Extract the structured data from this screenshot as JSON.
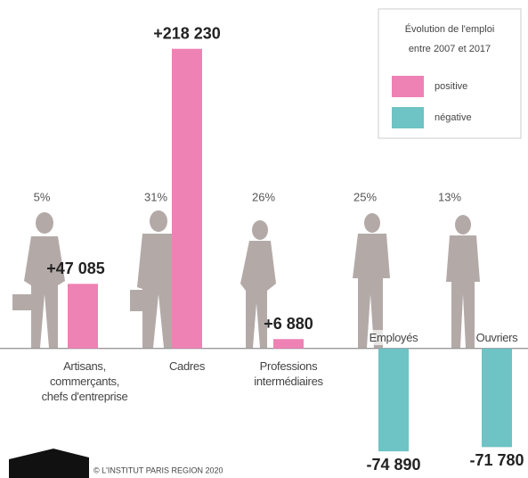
{
  "chart_data": {
    "type": "bar",
    "legend_title": [
      "Évolution de l'emploi",
      "entre 2007 et 2017"
    ],
    "categories": [
      "Artisans,\ncommerçants,\nchefs d'entreprise",
      "Cadres",
      "Professions\nintermédiaires",
      "Employés",
      "Ouvriers"
    ],
    "values": [
      47085,
      218230,
      6880,
      -74890,
      -71780
    ],
    "value_labels": [
      "+47 085",
      "+218 230",
      "+6 880",
      "-74 890",
      "-71 780"
    ],
    "shares": [
      "5%",
      "31%",
      "26%",
      "25%",
      "13%"
    ],
    "series": [
      {
        "name": "positive",
        "color": "#ee82b4"
      },
      {
        "name": "négative",
        "color": "#6ec3c4"
      }
    ],
    "ylim": [
      -80000,
      220000
    ],
    "footer": "© L'INSTITUT PARIS REGION 2020"
  }
}
